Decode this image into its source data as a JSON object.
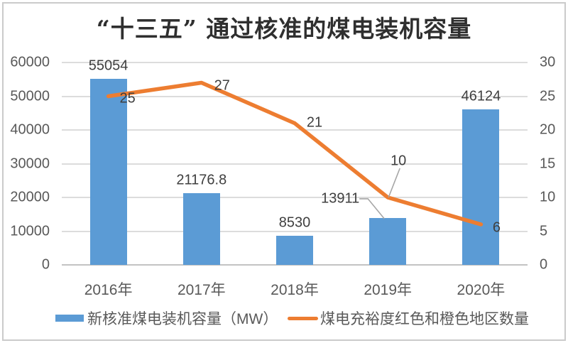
{
  "title": "“十三五” 通过核准的煤电装机容量",
  "chart_data": {
    "type": "bar",
    "subtype": "combo-bar-line",
    "title": "“十三五” 通过核准的煤电装机容量",
    "categories": [
      "2016年",
      "2017年",
      "2018年",
      "2019年",
      "2020年"
    ],
    "series": [
      {
        "name": "新核准煤电装机容量（MW）",
        "type": "bar",
        "axis": "left",
        "color": "#5B9BD5",
        "values": [
          55054,
          21176.8,
          8530,
          13911,
          46124
        ],
        "labels": [
          "55054",
          "21176.8",
          "8530",
          "13911",
          "46124"
        ]
      },
      {
        "name": "煤电充裕度红色和橙色地区数量",
        "type": "line",
        "axis": "right",
        "color": "#ED7D31",
        "values": [
          25,
          27,
          21,
          10,
          6
        ],
        "labels": [
          "25",
          "27",
          "21",
          "10",
          "6"
        ]
      }
    ],
    "left_axis": {
      "min": 0,
      "max": 60000,
      "step": 10000,
      "ticks": [
        "0",
        "10000",
        "20000",
        "30000",
        "40000",
        "50000",
        "60000"
      ]
    },
    "right_axis": {
      "min": 0,
      "max": 30,
      "step": 5,
      "ticks": [
        "0",
        "5",
        "10",
        "15",
        "20",
        "25",
        "30"
      ]
    },
    "grid": true,
    "legend_position": "bottom"
  },
  "colors": {
    "bar": "#5B9BD5",
    "line": "#ED7D31",
    "gridline": "#DCDCDC",
    "axis_line": "#C3C3C3",
    "tick_text": "#595959",
    "label_text": "#3F3F3F",
    "leader_line": "#A6A6A6",
    "frame_border": "#CBCBCB"
  }
}
